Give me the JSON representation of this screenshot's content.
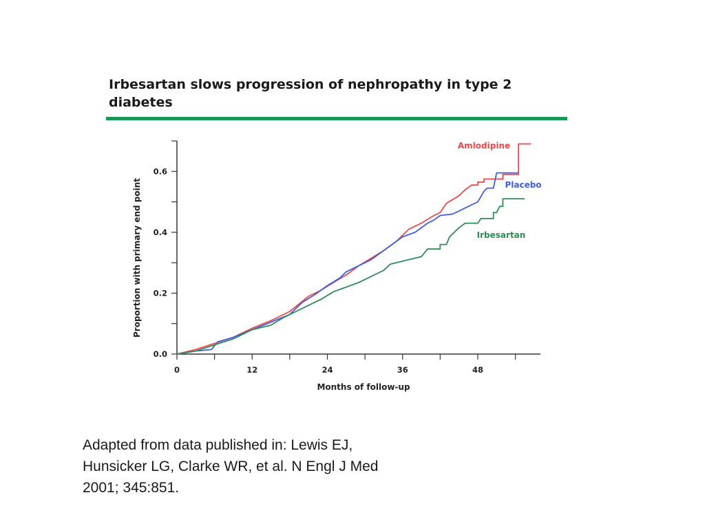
{
  "chart_data": {
    "type": "line",
    "title": "Irbesartan slows progression of nephropathy in type 2 diabetes",
    "xlabel": "Months of follow-up",
    "ylabel": "Proportion with primary end point",
    "xlim": [
      0,
      58
    ],
    "ylim": [
      0,
      0.7
    ],
    "xticks": [
      0,
      12,
      24,
      36,
      48
    ],
    "xtick_labels": [
      "0",
      "12",
      "24",
      "36",
      "48"
    ],
    "yticks": [
      0.0,
      0.2,
      0.4,
      0.6
    ],
    "ytick_labels": [
      "0.0",
      "0.2",
      "0.4",
      "0.6"
    ],
    "series": [
      {
        "name": "Amlodipine",
        "color": "#f0474b",
        "points": [
          [
            0,
            0
          ],
          [
            3,
            0.015
          ],
          [
            6,
            0.035
          ],
          [
            9,
            0.055
          ],
          [
            12,
            0.085
          ],
          [
            15,
            0.11
          ],
          [
            18,
            0.14
          ],
          [
            21,
            0.19
          ],
          [
            23,
            0.21
          ],
          [
            25,
            0.235
          ],
          [
            27,
            0.26
          ],
          [
            29,
            0.29
          ],
          [
            31,
            0.315
          ],
          [
            33,
            0.34
          ],
          [
            35,
            0.37
          ],
          [
            37,
            0.41
          ],
          [
            39,
            0.43
          ],
          [
            41,
            0.455
          ],
          [
            42,
            0.465
          ],
          [
            43,
            0.495
          ],
          [
            45,
            0.52
          ],
          [
            46,
            0.54
          ],
          [
            47,
            0.555
          ],
          [
            48,
            0.555
          ],
          [
            48,
            0.565
          ],
          [
            49,
            0.565
          ],
          [
            49,
            0.575
          ],
          [
            52,
            0.575
          ],
          [
            52,
            0.59
          ],
          [
            54.5,
            0.59
          ],
          [
            54.5,
            0.69
          ],
          [
            56.5,
            0.69
          ]
        ]
      },
      {
        "name": "Placebo",
        "color": "#3c5fe6",
        "points": [
          [
            0,
            0
          ],
          [
            3,
            0.01
          ],
          [
            5.5,
            0.015
          ],
          [
            6.5,
            0.04
          ],
          [
            9,
            0.055
          ],
          [
            12,
            0.08
          ],
          [
            15,
            0.105
          ],
          [
            18,
            0.13
          ],
          [
            20,
            0.17
          ],
          [
            22,
            0.195
          ],
          [
            24,
            0.225
          ],
          [
            26,
            0.25
          ],
          [
            27,
            0.27
          ],
          [
            29,
            0.29
          ],
          [
            31,
            0.31
          ],
          [
            33,
            0.34
          ],
          [
            36,
            0.385
          ],
          [
            38,
            0.4
          ],
          [
            40,
            0.43
          ],
          [
            41,
            0.44
          ],
          [
            42,
            0.455
          ],
          [
            44,
            0.46
          ],
          [
            46,
            0.48
          ],
          [
            48,
            0.5
          ],
          [
            49,
            0.535
          ],
          [
            49.5,
            0.545
          ],
          [
            50.5,
            0.545
          ],
          [
            51,
            0.595
          ],
          [
            54.5,
            0.595
          ]
        ]
      },
      {
        "name": "Irbesartan",
        "color": "#2e8b57",
        "points": [
          [
            0,
            0
          ],
          [
            3,
            0.01
          ],
          [
            6,
            0.03
          ],
          [
            9,
            0.05
          ],
          [
            12,
            0.08
          ],
          [
            15,
            0.095
          ],
          [
            17,
            0.12
          ],
          [
            19,
            0.14
          ],
          [
            21,
            0.16
          ],
          [
            23,
            0.18
          ],
          [
            25,
            0.205
          ],
          [
            27,
            0.22
          ],
          [
            29,
            0.235
          ],
          [
            31,
            0.255
          ],
          [
            33,
            0.275
          ],
          [
            34,
            0.295
          ],
          [
            35,
            0.3
          ],
          [
            39,
            0.32
          ],
          [
            40,
            0.345
          ],
          [
            42,
            0.345
          ],
          [
            42,
            0.36
          ],
          [
            43,
            0.36
          ],
          [
            43.5,
            0.385
          ],
          [
            45,
            0.415
          ],
          [
            46,
            0.43
          ],
          [
            48,
            0.43
          ],
          [
            48.5,
            0.445
          ],
          [
            50.5,
            0.445
          ],
          [
            50.5,
            0.465
          ],
          [
            51,
            0.465
          ],
          [
            51.5,
            0.485
          ],
          [
            52,
            0.485
          ],
          [
            52,
            0.51
          ],
          [
            55.5,
            0.51
          ]
        ]
      }
    ],
    "annotations": [
      {
        "text": "Amlodipine",
        "color": "#f0474b"
      },
      {
        "text": "Placebo",
        "color": "#3c5fe6"
      },
      {
        "text": "Irbesartan",
        "color": "#2e8b57"
      }
    ]
  },
  "caption": "Adapted from data published in: Lewis EJ, Hunsicker LG, Clarke WR, et al. N Engl J Med 2001; 345:851."
}
